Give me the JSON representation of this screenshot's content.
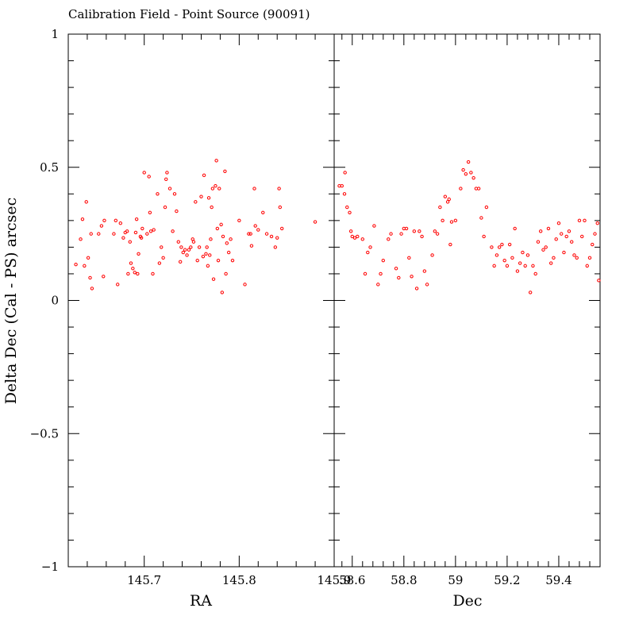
{
  "chart_data": {
    "type": "scatter",
    "title": "Calibration Field - Point Source (90091)",
    "ylabel": "Delta Dec (Cal - PS) arcsec",
    "ylim": [
      -1,
      1
    ],
    "yticks": [
      1,
      0.5,
      0,
      -0.5,
      -1
    ],
    "ytick_labels": [
      "1",
      "0.5",
      "0",
      "−0.5",
      "−1"
    ],
    "marker_color": "#ff0000",
    "panels": [
      {
        "id": "ra",
        "xlabel": "RA",
        "xlim": [
          145.62,
          145.9
        ],
        "xticks": [
          145.7,
          145.8,
          145.9
        ],
        "xtick_labels": [
          "145.7",
          "145.8",
          "145.9"
        ],
        "points": [
          [
            145.628,
            0.135
          ],
          [
            145.633,
            0.23
          ],
          [
            145.635,
            0.305
          ],
          [
            145.637,
            0.13
          ],
          [
            145.639,
            0.37
          ],
          [
            145.641,
            0.16
          ],
          [
            145.643,
            0.085
          ],
          [
            145.644,
            0.25
          ],
          [
            145.645,
            0.045
          ],
          [
            145.652,
            0.25
          ],
          [
            145.655,
            0.28
          ],
          [
            145.657,
            0.09
          ],
          [
            145.658,
            0.3
          ],
          [
            145.668,
            0.25
          ],
          [
            145.67,
            0.3
          ],
          [
            145.672,
            0.06
          ],
          [
            145.675,
            0.29
          ],
          [
            145.678,
            0.235
          ],
          [
            145.68,
            0.255
          ],
          [
            145.682,
            0.26
          ],
          [
            145.683,
            0.1
          ],
          [
            145.685,
            0.22
          ],
          [
            145.686,
            0.14
          ],
          [
            145.688,
            0.12
          ],
          [
            145.69,
            0.105
          ],
          [
            145.691,
            0.255
          ],
          [
            145.692,
            0.305
          ],
          [
            145.693,
            0.1
          ],
          [
            145.694,
            0.175
          ],
          [
            145.696,
            0.24
          ],
          [
            145.697,
            0.235
          ],
          [
            145.698,
            0.27
          ],
          [
            145.7,
            0.48
          ],
          [
            145.703,
            0.25
          ],
          [
            145.705,
            0.465
          ],
          [
            145.706,
            0.33
          ],
          [
            145.707,
            0.26
          ],
          [
            145.709,
            0.1
          ],
          [
            145.71,
            0.265
          ],
          [
            145.714,
            0.4
          ],
          [
            145.716,
            0.14
          ],
          [
            145.718,
            0.2
          ],
          [
            145.72,
            0.16
          ],
          [
            145.722,
            0.35
          ],
          [
            145.723,
            0.455
          ],
          [
            145.724,
            0.48
          ],
          [
            145.727,
            0.42
          ],
          [
            145.73,
            0.26
          ],
          [
            145.732,
            0.4
          ],
          [
            145.734,
            0.335
          ],
          [
            145.736,
            0.22
          ],
          [
            145.738,
            0.145
          ],
          [
            145.739,
            0.2
          ],
          [
            145.741,
            0.18
          ],
          [
            145.743,
            0.19
          ],
          [
            145.745,
            0.17
          ],
          [
            145.747,
            0.19
          ],
          [
            145.749,
            0.2
          ],
          [
            145.751,
            0.23
          ],
          [
            145.752,
            0.22
          ],
          [
            145.754,
            0.37
          ],
          [
            145.756,
            0.15
          ],
          [
            145.758,
            0.2
          ],
          [
            145.76,
            0.39
          ],
          [
            145.762,
            0.165
          ],
          [
            145.763,
            0.47
          ],
          [
            145.765,
            0.175
          ],
          [
            145.766,
            0.2
          ],
          [
            145.767,
            0.13
          ],
          [
            145.768,
            0.385
          ],
          [
            145.769,
            0.17
          ],
          [
            145.77,
            0.23
          ],
          [
            145.771,
            0.35
          ],
          [
            145.772,
            0.42
          ],
          [
            145.773,
            0.08
          ],
          [
            145.775,
            0.43
          ],
          [
            145.776,
            0.525
          ],
          [
            145.777,
            0.27
          ],
          [
            145.778,
            0.15
          ],
          [
            145.779,
            0.42
          ],
          [
            145.781,
            0.285
          ],
          [
            145.782,
            0.03
          ],
          [
            145.783,
            0.24
          ],
          [
            145.785,
            0.485
          ],
          [
            145.786,
            0.1
          ],
          [
            145.787,
            0.215
          ],
          [
            145.789,
            0.18
          ],
          [
            145.791,
            0.23
          ],
          [
            145.793,
            0.15
          ],
          [
            145.8,
            0.3
          ],
          [
            145.806,
            0.06
          ],
          [
            145.81,
            0.25
          ],
          [
            145.812,
            0.25
          ],
          [
            145.813,
            0.205
          ],
          [
            145.816,
            0.42
          ],
          [
            145.817,
            0.28
          ],
          [
            145.82,
            0.265
          ],
          [
            145.825,
            0.33
          ],
          [
            145.829,
            0.25
          ],
          [
            145.834,
            0.24
          ],
          [
            145.838,
            0.2
          ],
          [
            145.84,
            0.235
          ],
          [
            145.842,
            0.42
          ],
          [
            145.843,
            0.35
          ],
          [
            145.845,
            0.27
          ],
          [
            145.88,
            0.295
          ]
        ]
      },
      {
        "id": "dec",
        "xlabel": "Dec",
        "xlim": [
          58.53,
          59.56
        ],
        "xticks": [
          58.6,
          58.8,
          59,
          59.2,
          59.4
        ],
        "xtick_labels": [
          "58.6",
          "58.8",
          "59",
          "59.2",
          "59.4"
        ],
        "points": [
          [
            58.55,
            0.43
          ],
          [
            58.56,
            0.43
          ],
          [
            58.57,
            0.4
          ],
          [
            58.572,
            0.48
          ],
          [
            58.58,
            0.35
          ],
          [
            58.59,
            0.33
          ],
          [
            58.595,
            0.26
          ],
          [
            58.6,
            0.24
          ],
          [
            58.61,
            0.235
          ],
          [
            58.62,
            0.24
          ],
          [
            58.64,
            0.23
          ],
          [
            58.65,
            0.1
          ],
          [
            58.66,
            0.18
          ],
          [
            58.67,
            0.2
          ],
          [
            58.685,
            0.28
          ],
          [
            58.7,
            0.06
          ],
          [
            58.71,
            0.1
          ],
          [
            58.72,
            0.15
          ],
          [
            58.74,
            0.23
          ],
          [
            58.75,
            0.25
          ],
          [
            58.77,
            0.12
          ],
          [
            58.78,
            0.085
          ],
          [
            58.79,
            0.25
          ],
          [
            58.8,
            0.27
          ],
          [
            58.81,
            0.27
          ],
          [
            58.82,
            0.16
          ],
          [
            58.83,
            0.09
          ],
          [
            58.84,
            0.26
          ],
          [
            58.85,
            0.045
          ],
          [
            58.86,
            0.26
          ],
          [
            58.87,
            0.24
          ],
          [
            58.88,
            0.11
          ],
          [
            58.89,
            0.06
          ],
          [
            58.91,
            0.17
          ],
          [
            58.92,
            0.26
          ],
          [
            58.93,
            0.25
          ],
          [
            58.94,
            0.35
          ],
          [
            58.95,
            0.3
          ],
          [
            58.96,
            0.39
          ],
          [
            58.97,
            0.37
          ],
          [
            58.975,
            0.38
          ],
          [
            58.98,
            0.21
          ],
          [
            58.985,
            0.295
          ],
          [
            59.0,
            0.3
          ],
          [
            59.02,
            0.42
          ],
          [
            59.03,
            0.49
          ],
          [
            59.04,
            0.475
          ],
          [
            59.05,
            0.52
          ],
          [
            59.06,
            0.48
          ],
          [
            59.07,
            0.46
          ],
          [
            59.08,
            0.42
          ],
          [
            59.09,
            0.42
          ],
          [
            59.1,
            0.31
          ],
          [
            59.11,
            0.24
          ],
          [
            59.12,
            0.35
          ],
          [
            59.14,
            0.2
          ],
          [
            59.15,
            0.13
          ],
          [
            59.16,
            0.17
          ],
          [
            59.17,
            0.2
          ],
          [
            59.18,
            0.21
          ],
          [
            59.19,
            0.15
          ],
          [
            59.2,
            0.13
          ],
          [
            59.21,
            0.21
          ],
          [
            59.22,
            0.16
          ],
          [
            59.23,
            0.27
          ],
          [
            59.24,
            0.11
          ],
          [
            59.25,
            0.14
          ],
          [
            59.26,
            0.18
          ],
          [
            59.27,
            0.13
          ],
          [
            59.28,
            0.17
          ],
          [
            59.29,
            0.03
          ],
          [
            59.3,
            0.13
          ],
          [
            59.31,
            0.1
          ],
          [
            59.32,
            0.22
          ],
          [
            59.33,
            0.26
          ],
          [
            59.34,
            0.19
          ],
          [
            59.35,
            0.2
          ],
          [
            59.36,
            0.27
          ],
          [
            59.37,
            0.14
          ],
          [
            59.38,
            0.16
          ],
          [
            59.39,
            0.23
          ],
          [
            59.4,
            0.29
          ],
          [
            59.41,
            0.25
          ],
          [
            59.42,
            0.18
          ],
          [
            59.43,
            0.24
          ],
          [
            59.44,
            0.26
          ],
          [
            59.45,
            0.22
          ],
          [
            59.46,
            0.17
          ],
          [
            59.47,
            0.16
          ],
          [
            59.48,
            0.3
          ],
          [
            59.49,
            0.24
          ],
          [
            59.5,
            0.3
          ],
          [
            59.51,
            0.13
          ],
          [
            59.52,
            0.16
          ],
          [
            59.53,
            0.21
          ],
          [
            59.54,
            0.25
          ],
          [
            59.55,
            0.29
          ],
          [
            59.555,
            0.075
          ]
        ]
      }
    ]
  }
}
